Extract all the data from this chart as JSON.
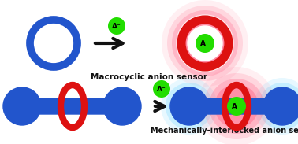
{
  "bg_color": "#ffffff",
  "blue": "#2255cc",
  "blue_light": "#4477dd",
  "red": "#dd1111",
  "green": "#22dd00",
  "pink_glow": "#ff6688",
  "cyan_glow": "#88ddff",
  "arrow_color": "#111111",
  "text_color": "#111111",
  "top_label": "Macrocyclic anion sensor",
  "bottom_label": "Mechanically-interlocked anion sensor",
  "anion_label": "A⁻",
  "figw": 3.78,
  "figh": 1.83,
  "dpi": 100
}
